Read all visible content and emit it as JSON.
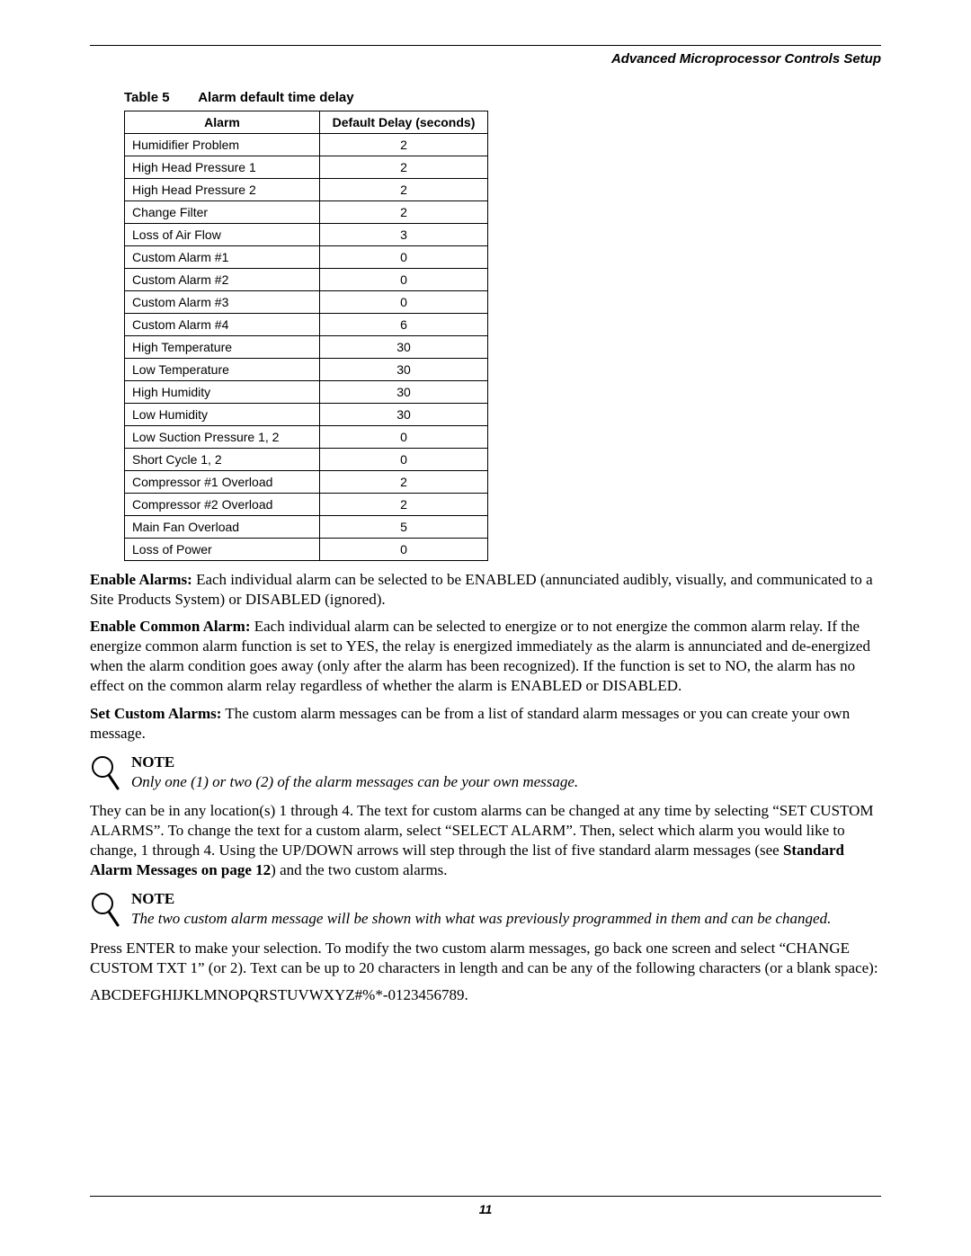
{
  "header": {
    "section_title": "Advanced Microprocessor Controls Setup"
  },
  "table": {
    "label": "Table 5",
    "title": "Alarm default time delay",
    "columns": [
      "Alarm",
      "Default Delay (seconds)"
    ],
    "rows": [
      [
        "Humidifier Problem",
        "2"
      ],
      [
        "High Head Pressure 1",
        "2"
      ],
      [
        "High Head Pressure 2",
        "2"
      ],
      [
        "Change Filter",
        "2"
      ],
      [
        "Loss of Air Flow",
        "3"
      ],
      [
        "Custom Alarm #1",
        "0"
      ],
      [
        "Custom Alarm #2",
        "0"
      ],
      [
        "Custom Alarm #3",
        "0"
      ],
      [
        "Custom Alarm #4",
        "6"
      ],
      [
        "High Temperature",
        "30"
      ],
      [
        "Low Temperature",
        "30"
      ],
      [
        "High Humidity",
        "30"
      ],
      [
        "Low Humidity",
        "30"
      ],
      [
        "Low Suction Pressure 1, 2",
        "0"
      ],
      [
        "Short Cycle 1, 2",
        "0"
      ],
      [
        "Compressor #1 Overload",
        "2"
      ],
      [
        "Compressor #2 Overload",
        "2"
      ],
      [
        "Main Fan Overload",
        "5"
      ],
      [
        "Loss of Power",
        "0"
      ]
    ]
  },
  "paragraphs": {
    "enable_alarms_lead": "Enable Alarms:",
    "enable_alarms_body": " Each individual alarm can be selected to be ENABLED (annunciated audibly, visually, and communicated to a Site Products System) or DISABLED (ignored).",
    "enable_common_lead": "Enable Common Alarm:",
    "enable_common_body": " Each individual alarm can be selected to energize or to not energize the common alarm relay. If the energize common alarm function is set to YES, the relay is energized immediately as the alarm is annunciated and de-energized when the alarm condition goes away (only after the alarm has been recognized). If the function is set to NO, the alarm has no effect on the common alarm relay regardless of whether the alarm is ENABLED or DISABLED.",
    "set_custom_lead": "Set Custom Alarms:",
    "set_custom_body": " The custom alarm messages can be from a list of standard alarm messages or you can create your own message.",
    "locations_pre": "They can be in any location(s) 1 through 4. The text for custom alarms can be changed at any time by selecting “SET CUSTOM ALARMS”. To change the text for a custom alarm, select “SELECT ALARM”. Then, select which alarm you would like to change, 1 through 4. Using the UP/DOWN arrows will step through the list of five standard alarm messages (see ",
    "locations_bold": "Standard Alarm Messages on page 12",
    "locations_post": ") and the two custom alarms.",
    "press_enter": "Press ENTER to make your selection. To modify the two custom alarm messages, go back one screen and select “CHANGE CUSTOM TXT 1” (or 2). Text can be up to 20 characters in length and can be any of the following characters (or a blank space):",
    "char_set": "ABCDEFGHIJKLMNOPQRSTUVWXYZ#%*-0123456789."
  },
  "notes": {
    "title": "NOTE",
    "note1": "Only one (1) or two (2) of the alarm messages can be your own message.",
    "note2": "The two custom alarm message will be shown with what was previously programmed in them and can be changed."
  },
  "footer": {
    "page_number": "11"
  }
}
